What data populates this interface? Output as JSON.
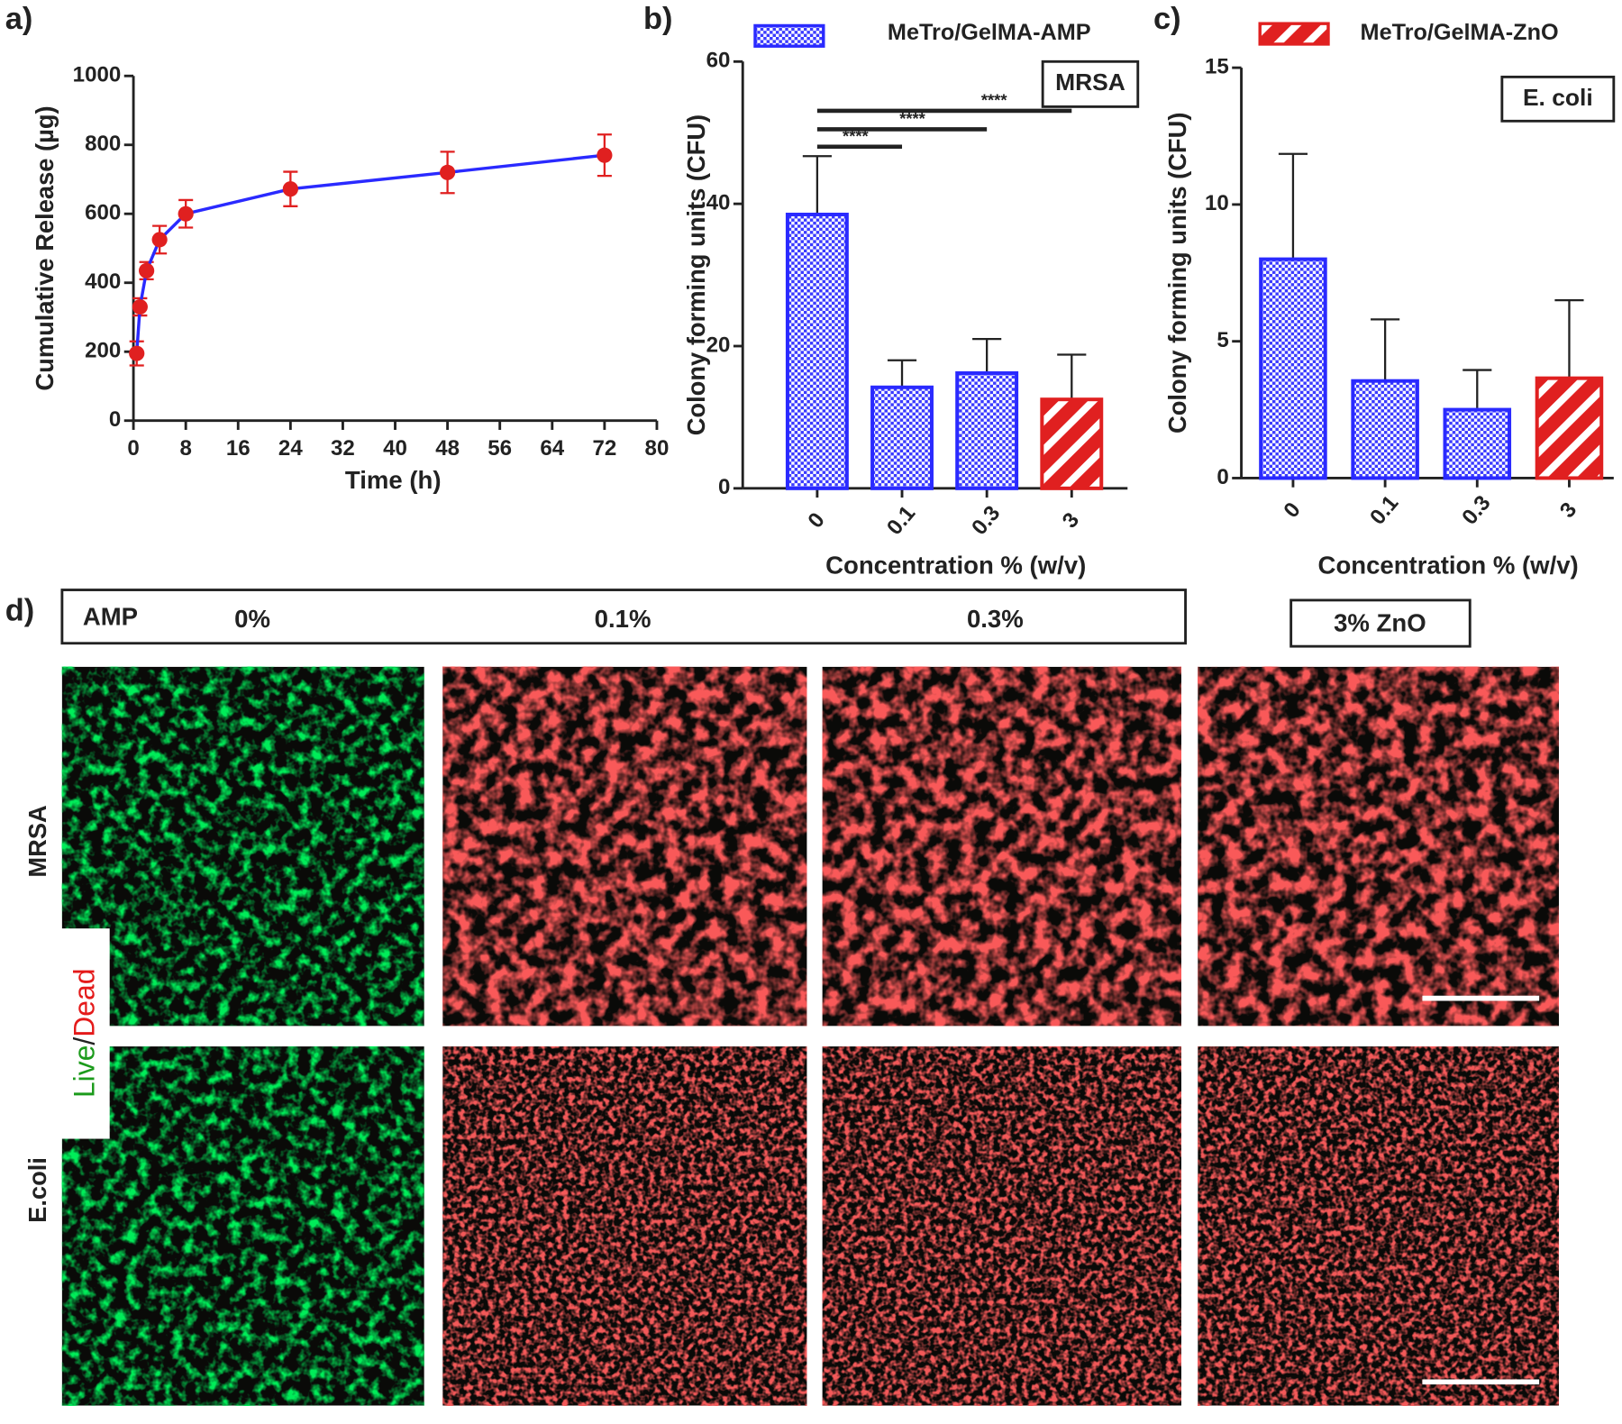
{
  "chart_data": [
    {
      "type": "line",
      "label": "a)",
      "xlabel": "Time (h)",
      "ylabel": "Cumulative Release (µg)",
      "x": [
        0.5,
        1,
        2,
        4,
        8,
        24,
        48,
        72
      ],
      "series": [
        {
          "color": "#2a2aff",
          "marker_color": "#e02020",
          "values": [
            195,
            330,
            435,
            525,
            600,
            672,
            720,
            770
          ],
          "errors": [
            35,
            25,
            25,
            40,
            40,
            50,
            60,
            60
          ]
        }
      ],
      "xlim": [
        0,
        80
      ],
      "xticks": [
        0,
        8,
        16,
        24,
        32,
        40,
        48,
        56,
        64,
        72,
        80
      ],
      "ylim": [
        0,
        1000
      ],
      "yticks": [
        0,
        200,
        400,
        600,
        800,
        1000
      ]
    },
    {
      "type": "bar",
      "label": "b)",
      "xlabel": "Concentration % (w/v)",
      "ylabel": "Colony forming units (CFU)",
      "categories": [
        "0",
        "0.1",
        "0.3",
        "3"
      ],
      "series": [
        {
          "name": "MeTro/GelMA-AMP",
          "color": "#2a2aff",
          "pattern": "checker",
          "values": [
            38.5,
            14.2,
            16.2,
            null
          ],
          "errors": [
            8.2,
            3.8,
            4.8,
            null
          ]
        },
        {
          "color": "#e02020",
          "pattern": "hatch",
          "values": [
            null,
            null,
            null,
            12.5
          ],
          "errors": [
            null,
            null,
            null,
            6.3
          ]
        }
      ],
      "ylim": [
        0,
        60
      ],
      "yticks": [
        0,
        20,
        40,
        60
      ],
      "annotation": "MRSA",
      "significance": [
        "****",
        "****",
        "****"
      ]
    },
    {
      "type": "bar",
      "label": "c)",
      "xlabel": "Concentration % (w/v)",
      "ylabel": "Colony forming units (CFU)",
      "categories": [
        "0",
        "0.1",
        "0.3",
        "3"
      ],
      "series": [
        {
          "color": "#2a2aff",
          "pattern": "checker",
          "values": [
            8,
            3.55,
            2.5,
            null
          ],
          "errors": [
            3.85,
            2.25,
            1.45,
            null
          ]
        },
        {
          "name": "MeTro/GelMA-ZnO",
          "color": "#e02020",
          "pattern": "hatch",
          "values": [
            null,
            null,
            null,
            3.65
          ],
          "errors": [
            null,
            null,
            null,
            2.85
          ]
        }
      ],
      "ylim": [
        0,
        15
      ],
      "yticks": [
        0,
        5,
        10,
        15
      ],
      "annotation": "E. coli"
    }
  ],
  "micrographs": {
    "label": "d)",
    "header": [
      "AMP",
      "0%",
      "0.1%",
      "0.3%"
    ],
    "zno_label": "3% ZnO",
    "rows": [
      "MRSA",
      "E.coli"
    ],
    "stain": [
      "Live",
      "/",
      "Dead"
    ]
  }
}
